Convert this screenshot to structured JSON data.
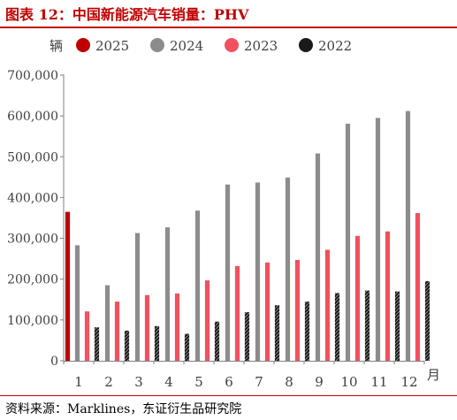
{
  "title": "图表 12：中国新能源汽车销量：PHV",
  "source": "资料来源：Marklines，东证衍生品研究院",
  "colors": {
    "title": "#c00000",
    "series": [
      "#c00000",
      "#8c8c8c",
      "#f2505e",
      "#1a1a1a"
    ]
  },
  "chart_data": {
    "type": "bar",
    "unit_label": "辆",
    "xlabel": "月",
    "categories": [
      "1",
      "2",
      "3",
      "4",
      "5",
      "6",
      "7",
      "8",
      "9",
      "10",
      "11",
      "12"
    ],
    "ylim": [
      0,
      700000
    ],
    "yticks": [
      "0",
      "100,000",
      "200,000",
      "300,000",
      "400,000",
      "500,000",
      "600,000",
      "700,000"
    ],
    "legend_position": "top",
    "series": [
      {
        "name": "2025",
        "values": [
          365000,
          null,
          null,
          null,
          null,
          null,
          null,
          null,
          null,
          null,
          null,
          null
        ]
      },
      {
        "name": "2024",
        "values": [
          283000,
          185000,
          313000,
          327000,
          368000,
          432000,
          437000,
          449000,
          508000,
          581000,
          595000,
          612000
        ]
      },
      {
        "name": "2023",
        "values": [
          121000,
          145000,
          161000,
          165000,
          197000,
          232000,
          241000,
          247000,
          272000,
          306000,
          317000,
          362000
        ]
      },
      {
        "name": "2022",
        "values": [
          82000,
          74000,
          85000,
          66000,
          96000,
          119000,
          136000,
          145000,
          166000,
          172000,
          170000,
          195000
        ]
      }
    ]
  }
}
